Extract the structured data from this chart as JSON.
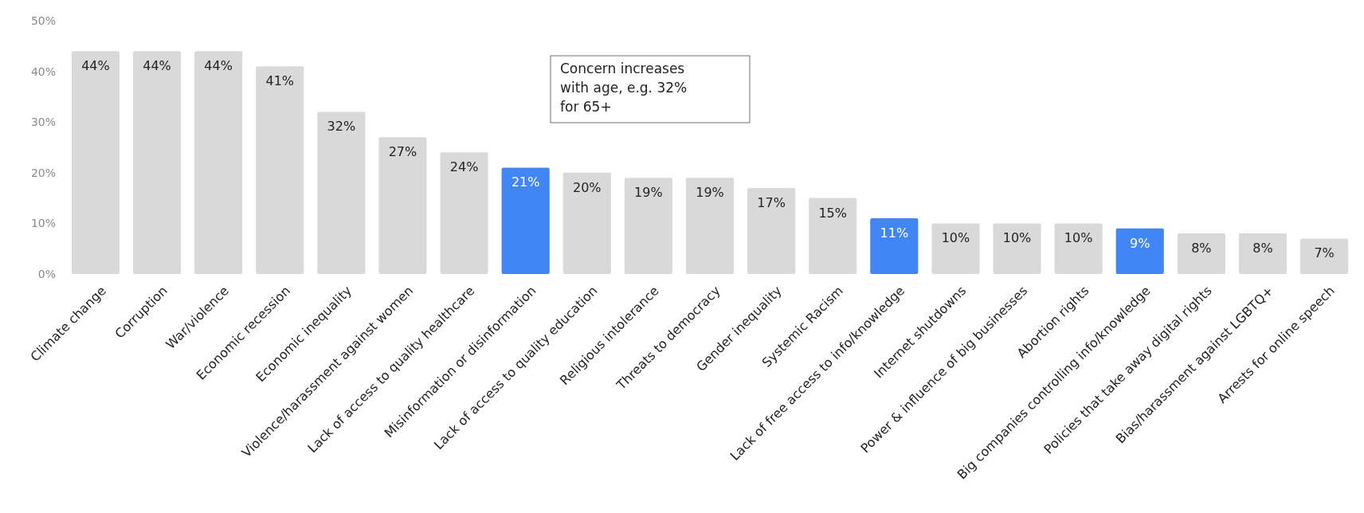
{
  "chart_data": {
    "type": "bar",
    "categories": [
      "Climate change",
      "Corruption",
      "War/violence",
      "Economic recession",
      "Economic inequality",
      "Violence/harassment against women",
      "Lack of access to quality healthcare",
      "Misinformation or disinformation",
      "Lack of access to quality education",
      "Religious intolerance",
      "Threats to democracy",
      "Gender inequality",
      "Systemic Racism",
      "Lack of free access to info/knowledge",
      "Internet shutdowns",
      "Power & influence of big businesses",
      "Abortion rights",
      "Big companies controlling info/knowledge",
      "Policies that take away digital rights",
      "Bias/harassment against LGBTQ+",
      "Arrests for online speech"
    ],
    "values": [
      44,
      44,
      44,
      41,
      32,
      27,
      24,
      21,
      20,
      19,
      19,
      17,
      15,
      11,
      10,
      10,
      10,
      9,
      8,
      8,
      7
    ],
    "colors": [
      "#d9d9d9",
      "#d9d9d9",
      "#d9d9d9",
      "#d9d9d9",
      "#d9d9d9",
      "#d9d9d9",
      "#d9d9d9",
      "#4285f4",
      "#d9d9d9",
      "#d9d9d9",
      "#d9d9d9",
      "#d9d9d9",
      "#d9d9d9",
      "#4285f4",
      "#d9d9d9",
      "#d9d9d9",
      "#d9d9d9",
      "#4285f4",
      "#d9d9d9",
      "#d9d9d9",
      "#d9d9d9"
    ],
    "value_labels": [
      "44%",
      "44%",
      "44%",
      "41%",
      "32%",
      "27%",
      "24%",
      "21%",
      "20%",
      "19%",
      "19%",
      "17%",
      "15%",
      "11%",
      "10%",
      "10%",
      "10%",
      "9%",
      "8%",
      "8%",
      "7%"
    ],
    "ylim": [
      0,
      50
    ],
    "yticks": [
      {
        "value": 0,
        "label": "0%"
      },
      {
        "value": 10,
        "label": "10%"
      },
      {
        "value": 20,
        "label": "20%"
      },
      {
        "value": 30,
        "label": "30%"
      },
      {
        "value": 40,
        "label": "40%"
      },
      {
        "value": 50,
        "label": "50%"
      }
    ],
    "grid": false,
    "annotations": [
      "Concern increases with age, e.g. 32% for 65+"
    ]
  }
}
